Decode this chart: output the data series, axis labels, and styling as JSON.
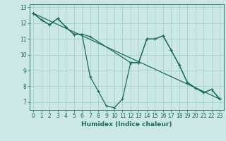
{
  "title": "",
  "xlabel": "Humidex (Indice chaleur)",
  "bg_color": "#cce8e4",
  "grid_color": "#99cccc",
  "line_color": "#1a6b5a",
  "xlim": [
    -0.5,
    23.5
  ],
  "ylim": [
    6.5,
    13.2
  ],
  "xticks": [
    0,
    1,
    2,
    3,
    4,
    5,
    6,
    7,
    8,
    9,
    10,
    11,
    12,
    13,
    14,
    15,
    16,
    17,
    18,
    19,
    20,
    21,
    22,
    23
  ],
  "yticks": [
    7,
    8,
    9,
    10,
    11,
    12,
    13
  ],
  "line1_x": [
    0,
    1,
    2,
    3,
    4,
    5,
    6,
    7,
    8,
    9,
    10,
    11,
    12,
    13,
    14,
    15,
    16,
    17,
    18,
    19,
    20,
    21,
    22,
    23
  ],
  "line1_y": [
    12.62,
    12.2,
    11.9,
    12.3,
    11.75,
    11.3,
    11.3,
    8.6,
    7.7,
    6.75,
    6.65,
    7.2,
    9.5,
    9.5,
    11.0,
    11.0,
    11.2,
    10.3,
    9.35,
    8.25,
    7.9,
    7.6,
    7.8,
    7.2
  ],
  "line2_x": [
    0,
    1,
    2,
    3,
    4,
    5,
    6,
    7,
    12,
    13,
    14,
    15,
    16,
    17,
    18,
    19,
    20,
    21,
    22,
    23
  ],
  "line2_y": [
    12.62,
    12.2,
    11.9,
    12.3,
    11.75,
    11.3,
    11.3,
    11.15,
    9.5,
    9.5,
    11.0,
    11.0,
    11.2,
    10.3,
    9.35,
    8.25,
    7.9,
    7.6,
    7.8,
    7.2
  ],
  "line3_x": [
    0,
    23
  ],
  "line3_y": [
    12.62,
    7.2
  ]
}
